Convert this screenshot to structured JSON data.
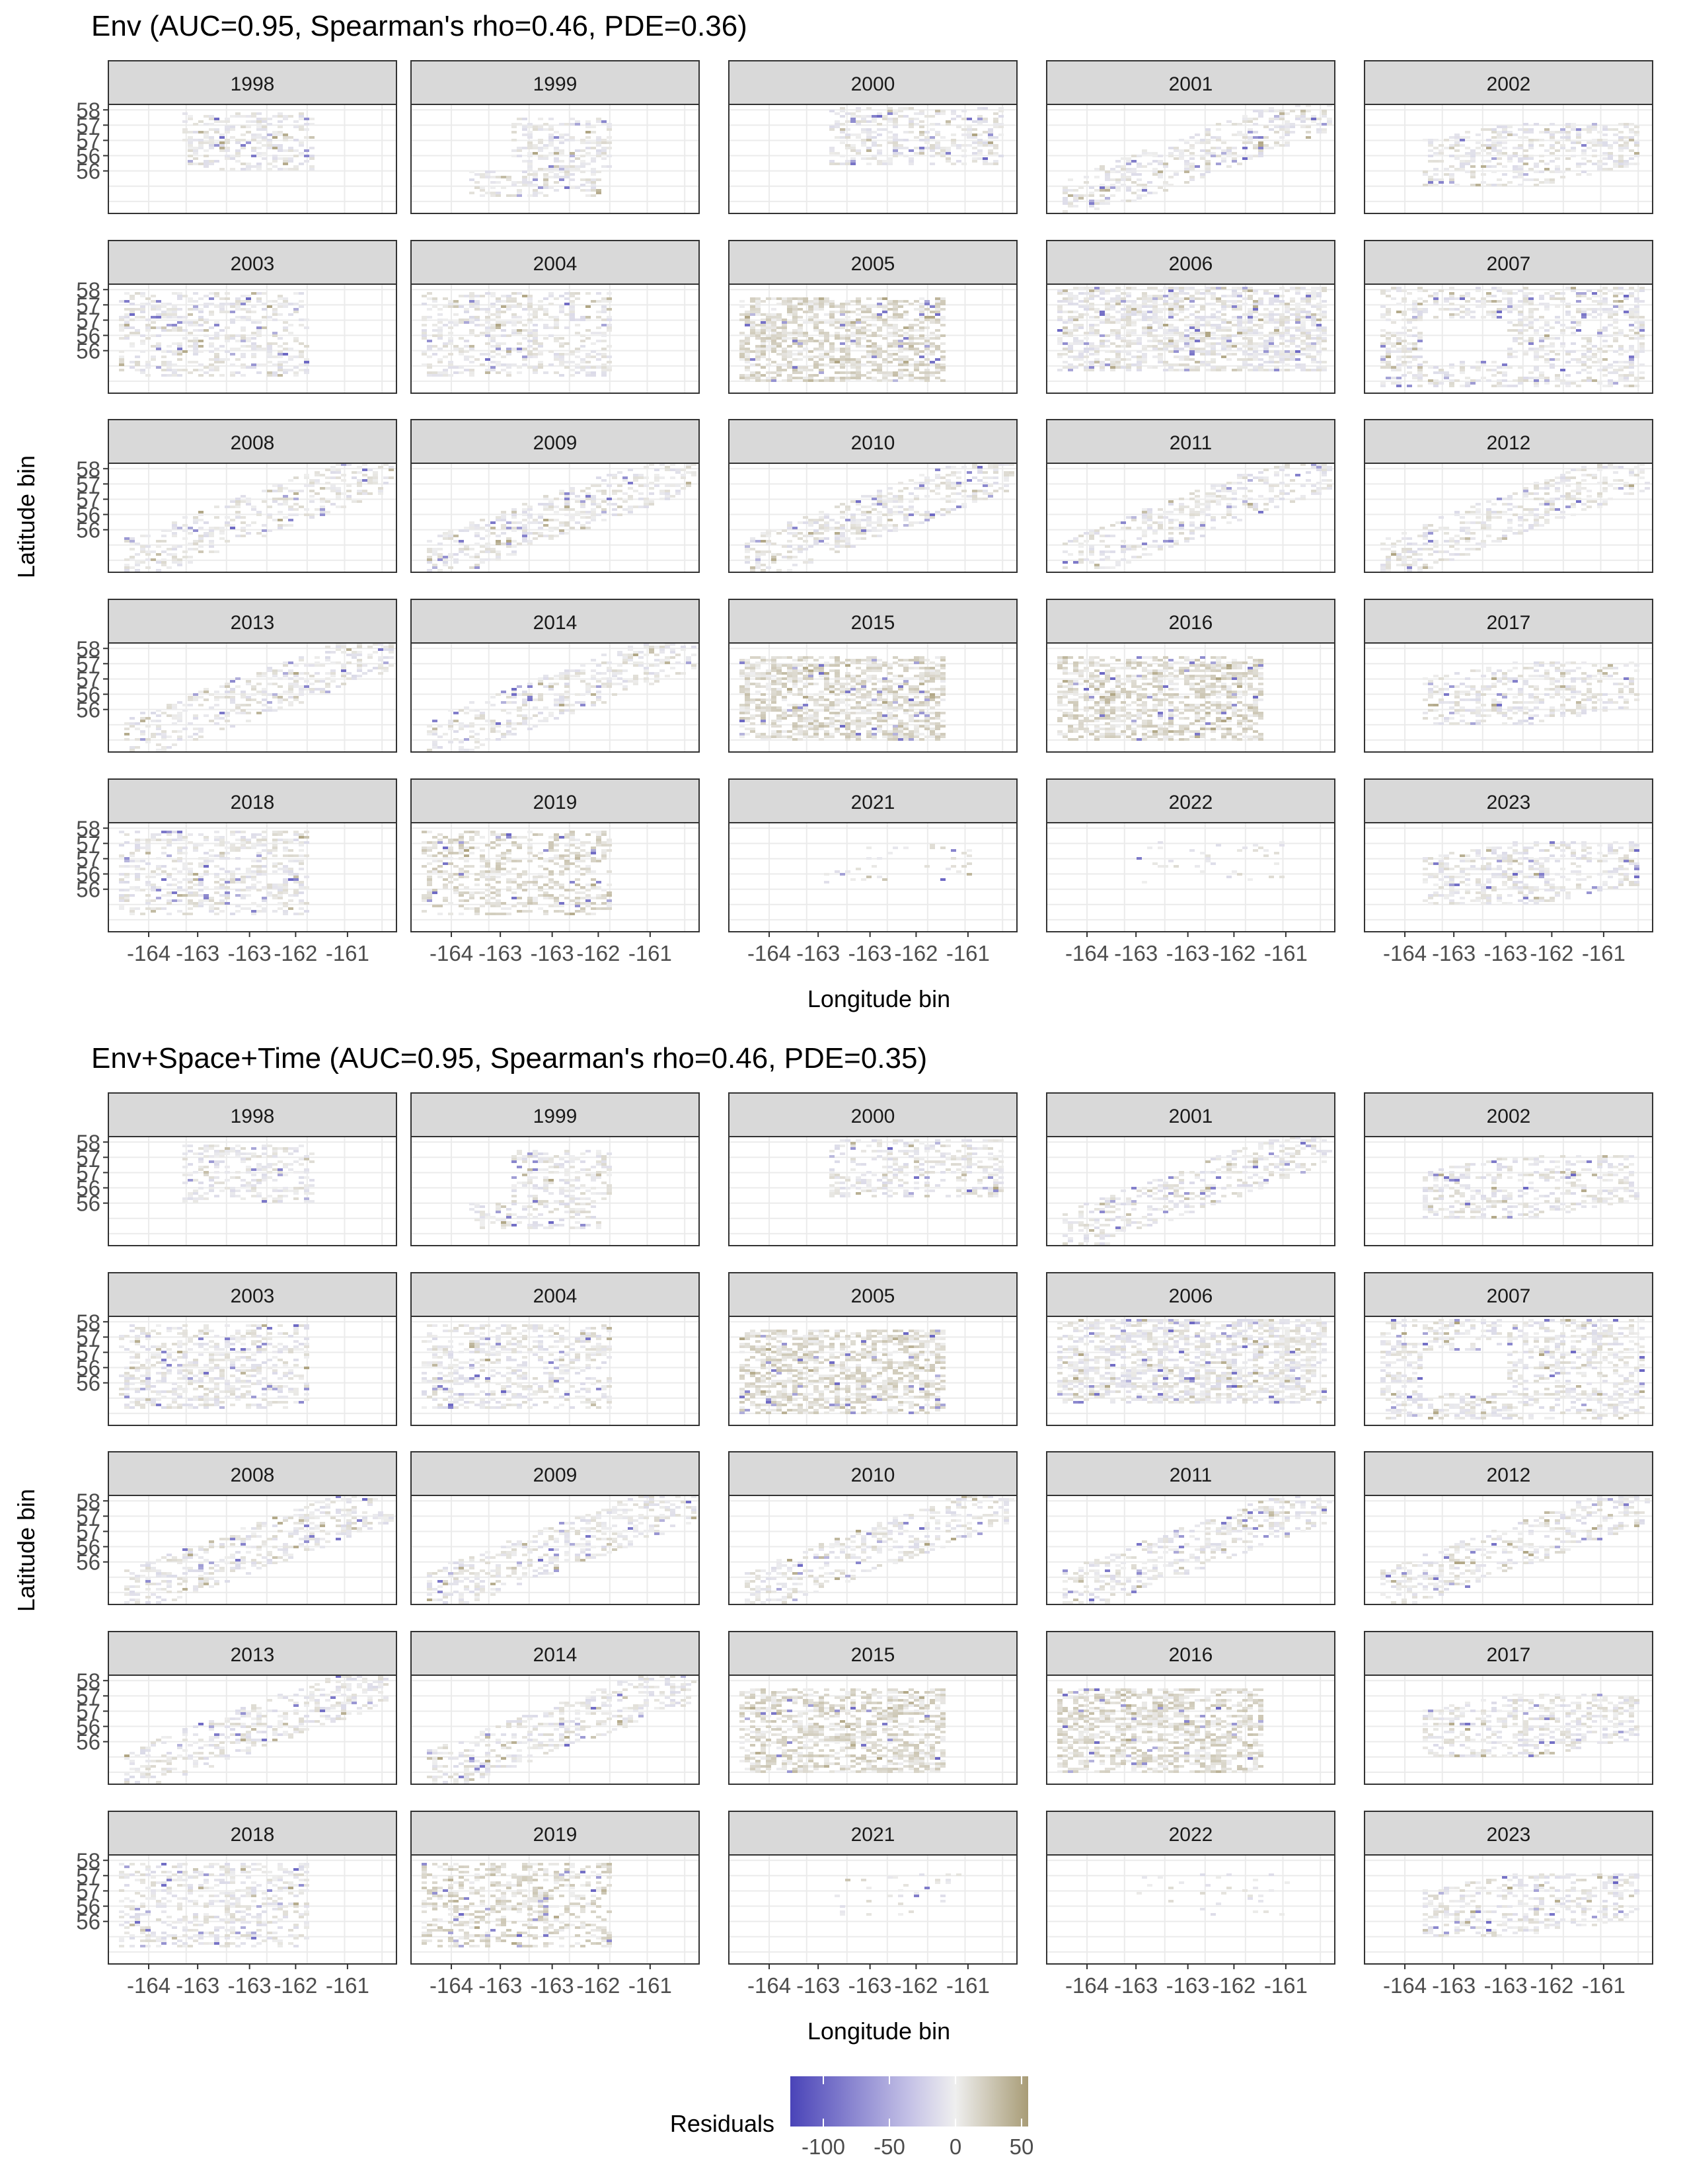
{
  "legend": {
    "title": "Residuals",
    "ticks": [
      -100,
      -50,
      0,
      50
    ],
    "tick_labels": [
      "-100",
      "-50",
      "0",
      "50"
    ],
    "range": [
      -125,
      55
    ],
    "colors": {
      "low": "#4a44b8",
      "mid": "#efefef",
      "high": "#a89c76"
    }
  },
  "colors": {
    "strip_bg": "#d9d9d9",
    "panel_border": "#333333",
    "grid": "#ebebeb",
    "cell_empty": "#efefef"
  },
  "chart_data": [
    {
      "type": "heatmap",
      "title": "Env (AUC=0.95, Spearman's rho=0.46, PDE=0.36)",
      "xlabel": "Longitude bin",
      "ylabel": "Latitude bin",
      "xticks": [
        "-164",
        "-163",
        "-163",
        "-162",
        "-161"
      ],
      "yticks": [
        "58",
        "57",
        "57",
        "56",
        "56"
      ],
      "facets": [
        "1998",
        "1999",
        "2000",
        "2001",
        "2002",
        "2003",
        "2004",
        "2005",
        "2006",
        "2007",
        "2008",
        "2009",
        "2010",
        "2011",
        "2012",
        "2013",
        "2014",
        "2015",
        "2016",
        "2017",
        "2018",
        "2019",
        "2021",
        "2022",
        "2023"
      ],
      "grid": true,
      "value_scale": "Residuals"
    },
    {
      "type": "heatmap",
      "title": "Env+Space+Time (AUC=0.95, Spearman's rho=0.46, PDE=0.35)",
      "xlabel": "Longitude bin",
      "ylabel": "Latitude bin",
      "xticks": [
        "-164",
        "-163",
        "-163",
        "-162",
        "-161"
      ],
      "yticks": [
        "58",
        "57",
        "57",
        "56",
        "56"
      ],
      "facets": [
        "1998",
        "1999",
        "2000",
        "2001",
        "2002",
        "2003",
        "2004",
        "2005",
        "2006",
        "2007",
        "2008",
        "2009",
        "2010",
        "2011",
        "2012",
        "2013",
        "2014",
        "2015",
        "2016",
        "2017",
        "2018",
        "2019",
        "2021",
        "2022",
        "2023"
      ],
      "grid": true,
      "value_scale": "Residuals"
    }
  ]
}
